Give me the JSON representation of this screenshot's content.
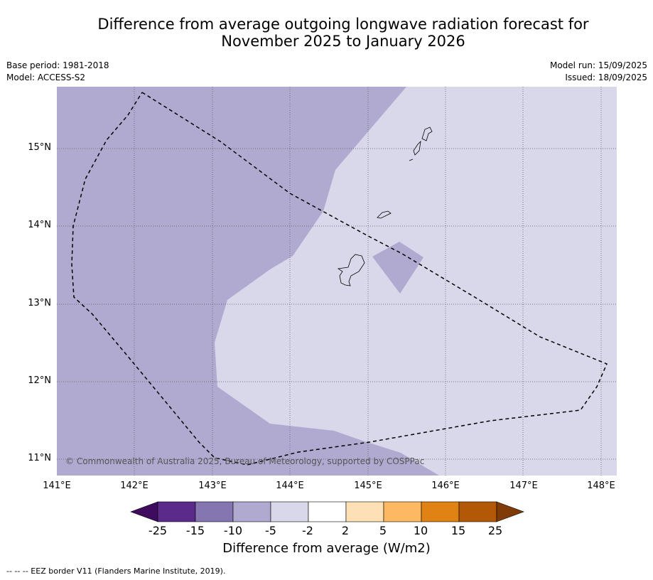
{
  "title_line1": "Difference from average outgoing longwave radiation forecast for",
  "title_line2": "November 2025 to January 2026",
  "meta_left": {
    "base_period": "Base period: 1981-2018",
    "model": "Model: ACCESS-S2"
  },
  "meta_right": {
    "model_run": "Model run: 15/09/2025",
    "issued": "Issued: 18/09/2025"
  },
  "copyright": "© Commonwealth of Australia 2025, Bureau of Meteorology, supported by COSPPac",
  "lat_labels": [
    "15°N",
    "14°N",
    "13°N",
    "12°N",
    "11°N"
  ],
  "lon_labels": [
    "141°E",
    "142°E",
    "143°E",
    "144°E",
    "145°E",
    "146°E",
    "147°E",
    "148°E"
  ],
  "colorbar": {
    "ticks": [
      "-25",
      "-15",
      "-10",
      "-5",
      "-2",
      "2",
      "5",
      "10",
      "15",
      "25"
    ],
    "colors": [
      "#3f0b5e",
      "#5b2a8b",
      "#8576b1",
      "#b0aad1",
      "#d8d8ea",
      "#ffffff",
      "#fde0b6",
      "#fdb863",
      "#e08214",
      "#b35806",
      "#7f3b08"
    ],
    "label": "Difference from average (W/m2)"
  },
  "footnote": "-- -- -- EEZ border V11 (Flanders Marine Institute, 2019).",
  "map_colors": {
    "light_band": "#d8d8ea",
    "mid_band": "#b0aad1"
  }
}
